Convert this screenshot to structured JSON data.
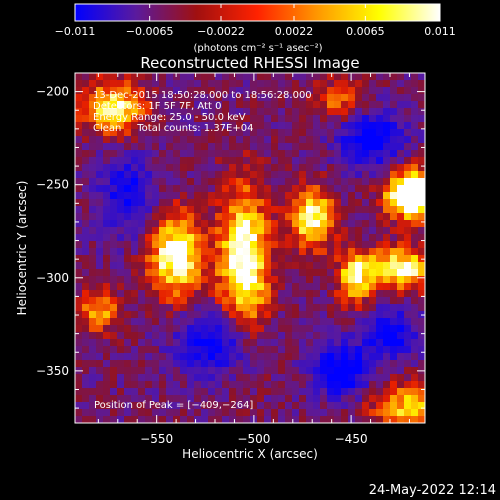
{
  "chart_data": {
    "type": "heatmap",
    "title": "Reconstructed RHESSI Image",
    "xlabel": "Heliocentric X (arcsec)",
    "ylabel": "Heliocentric Y (arcsec)",
    "xlim": [
      -592,
      -412
    ],
    "ylim": [
      -378,
      -190
    ],
    "x_ticks": [
      -550,
      -500,
      -450
    ],
    "y_ticks": [
      -200,
      -250,
      -300,
      -350
    ],
    "x_tick_labels": [
      "−550",
      "−500",
      "−450"
    ],
    "y_tick_labels": [
      "−200",
      "−250",
      "−300",
      "−350"
    ],
    "grid": false,
    "colorbar": {
      "min": -0.011,
      "max": 0.011,
      "ticks": [
        -0.011,
        -0.0065,
        -0.0022,
        0.0022,
        0.0065,
        0.011
      ],
      "tick_labels": [
        "−0.011",
        "−0.0065",
        "−0.0022",
        "0.0022",
        "0.0065",
        "0.011"
      ],
      "unit_label": "(photons cm⁻² s⁻¹ asec⁻²)",
      "colors": [
        "#0000ff",
        "#5a1a9e",
        "#a01010",
        "#ff2200",
        "#ff9900",
        "#ffff00",
        "#ffffff"
      ]
    },
    "annotations": {
      "time_range": "13-Dec-2015 18:50:28.000 to 18:56:28.000",
      "detectors": "Detectors: 1F 5F 7F, Att 0",
      "energy_range": "Energy Range: 25.0 - 50.0 keV",
      "clean_counts": "Clean     Total counts: 1.37E+04",
      "peak_position": "Position of Peak = [−409,−264]"
    },
    "peak": [
      -409,
      -264
    ],
    "source_blobs": [
      {
        "x": -572,
        "y": -209,
        "sx": 12,
        "sy": 10,
        "a": 0.55
      },
      {
        "x": -540,
        "y": -288,
        "sx": 10,
        "sy": 16,
        "a": 0.65
      },
      {
        "x": -505,
        "y": -292,
        "sx": 9,
        "sy": 28,
        "a": 0.7
      },
      {
        "x": -470,
        "y": -268,
        "sx": 8,
        "sy": 12,
        "a": 0.6
      },
      {
        "x": -448,
        "y": -300,
        "sx": 6,
        "sy": 10,
        "a": 0.55
      },
      {
        "x": -425,
        "y": -295,
        "sx": 12,
        "sy": 8,
        "a": 0.6
      },
      {
        "x": -418,
        "y": -255,
        "sx": 10,
        "sy": 9,
        "a": 0.95
      },
      {
        "x": -420,
        "y": -370,
        "sx": 14,
        "sy": 10,
        "a": 0.45
      },
      {
        "x": -580,
        "y": -318,
        "sx": 8,
        "sy": 8,
        "a": 0.4
      },
      {
        "x": -455,
        "y": -205,
        "sx": 10,
        "sy": 8,
        "a": 0.35
      }
    ],
    "negative_blobs": [
      {
        "x": -520,
        "y": -335,
        "sx": 14,
        "sy": 12,
        "a": 0.45
      },
      {
        "x": -440,
        "y": -225,
        "sx": 12,
        "sy": 12,
        "a": 0.45
      },
      {
        "x": -455,
        "y": -350,
        "sx": 10,
        "sy": 10,
        "a": 0.5
      },
      {
        "x": -565,
        "y": -255,
        "sx": 10,
        "sy": 16,
        "a": 0.35
      },
      {
        "x": -430,
        "y": -330,
        "sx": 10,
        "sy": 10,
        "a": 0.4
      }
    ]
  },
  "footer": {
    "date": "24-May-2022 12:14"
  }
}
